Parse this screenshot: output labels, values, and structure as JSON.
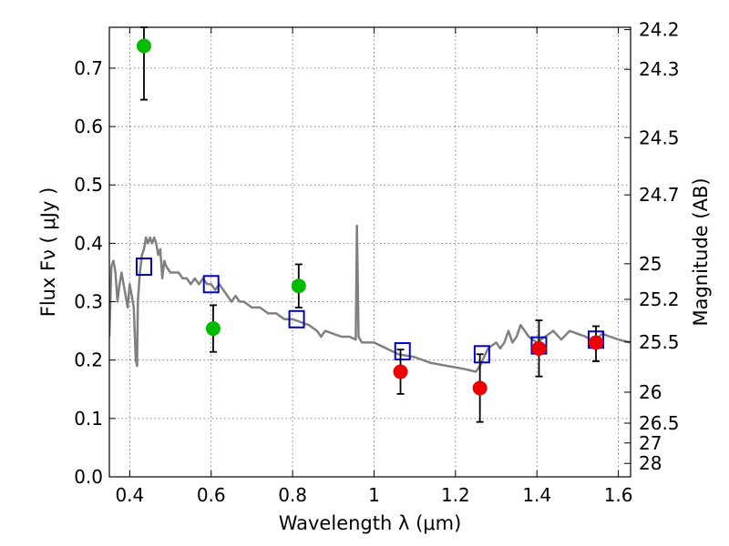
{
  "chart_data": {
    "type": "scatter",
    "xlabel": "Wavelength  λ (μm)",
    "ylabel": "Flux  Fν  ( μJy )",
    "y2label": "Magnitude (AB)",
    "xlim": [
      0.35,
      1.63
    ],
    "ylim": [
      0.0,
      0.77
    ],
    "grid": true,
    "x_ticks": [
      0.4,
      0.6,
      0.8,
      1.0,
      1.2,
      1.4,
      1.6
    ],
    "x_tick_labels": [
      "0.4",
      "0.6",
      "0.8",
      "1",
      "1.2",
      "1.4",
      "1.6"
    ],
    "y_ticks": [
      0.0,
      0.1,
      0.2,
      0.3,
      0.4,
      0.5,
      0.6,
      0.7
    ],
    "y_tick_labels": [
      "0.0",
      "0.1",
      "0.2",
      "0.3",
      "0.4",
      "0.5",
      "0.6",
      "0.7"
    ],
    "y2_ticks": [
      {
        "label": "24.2",
        "flux": 0.766
      },
      {
        "label": "24.3",
        "flux": 0.698
      },
      {
        "label": "24.5",
        "flux": 0.581
      },
      {
        "label": "24.7",
        "flux": 0.483
      },
      {
        "label": "25",
        "flux": 0.365
      },
      {
        "label": "25.2",
        "flux": 0.304
      },
      {
        "label": "25.5",
        "flux": 0.231
      },
      {
        "label": "26",
        "flux": 0.145
      },
      {
        "label": "26.5",
        "flux": 0.092
      },
      {
        "label": "27",
        "flux": 0.058
      },
      {
        "label": "28",
        "flux": 0.023
      }
    ],
    "series": [
      {
        "kind": "line",
        "color": "#808080",
        "points": [
          [
            0.35,
            0.24
          ],
          [
            0.355,
            0.36
          ],
          [
            0.36,
            0.37
          ],
          [
            0.365,
            0.35
          ],
          [
            0.37,
            0.3
          ],
          [
            0.375,
            0.33
          ],
          [
            0.38,
            0.35
          ],
          [
            0.385,
            0.33
          ],
          [
            0.39,
            0.31
          ],
          [
            0.395,
            0.29
          ],
          [
            0.4,
            0.33
          ],
          [
            0.405,
            0.31
          ],
          [
            0.41,
            0.29
          ],
          [
            0.415,
            0.2
          ],
          [
            0.418,
            0.19
          ],
          [
            0.42,
            0.3
          ],
          [
            0.425,
            0.35
          ],
          [
            0.43,
            0.38
          ],
          [
            0.435,
            0.39
          ],
          [
            0.44,
            0.41
          ],
          [
            0.445,
            0.4
          ],
          [
            0.45,
            0.41
          ],
          [
            0.455,
            0.4
          ],
          [
            0.46,
            0.41
          ],
          [
            0.465,
            0.4
          ],
          [
            0.47,
            0.38
          ],
          [
            0.475,
            0.39
          ],
          [
            0.48,
            0.34
          ],
          [
            0.485,
            0.37
          ],
          [
            0.49,
            0.36
          ],
          [
            0.5,
            0.35
          ],
          [
            0.51,
            0.35
          ],
          [
            0.52,
            0.35
          ],
          [
            0.53,
            0.34
          ],
          [
            0.54,
            0.34
          ],
          [
            0.55,
            0.33
          ],
          [
            0.56,
            0.34
          ],
          [
            0.57,
            0.33
          ],
          [
            0.58,
            0.34
          ],
          [
            0.59,
            0.33
          ],
          [
            0.6,
            0.33
          ],
          [
            0.61,
            0.32
          ],
          [
            0.62,
            0.33
          ],
          [
            0.63,
            0.32
          ],
          [
            0.64,
            0.31
          ],
          [
            0.65,
            0.3
          ],
          [
            0.66,
            0.31
          ],
          [
            0.67,
            0.3
          ],
          [
            0.68,
            0.3
          ],
          [
            0.7,
            0.29
          ],
          [
            0.72,
            0.29
          ],
          [
            0.74,
            0.28
          ],
          [
            0.76,
            0.28
          ],
          [
            0.78,
            0.27
          ],
          [
            0.8,
            0.27
          ],
          [
            0.82,
            0.265
          ],
          [
            0.84,
            0.26
          ],
          [
            0.86,
            0.25
          ],
          [
            0.87,
            0.24
          ],
          [
            0.88,
            0.25
          ],
          [
            0.9,
            0.245
          ],
          [
            0.92,
            0.24
          ],
          [
            0.94,
            0.24
          ],
          [
            0.955,
            0.235
          ],
          [
            0.958,
            0.43
          ],
          [
            0.962,
            0.24
          ],
          [
            0.97,
            0.23
          ],
          [
            1.0,
            0.23
          ],
          [
            1.03,
            0.22
          ],
          [
            1.06,
            0.21
          ],
          [
            1.1,
            0.205
          ],
          [
            1.14,
            0.195
          ],
          [
            1.18,
            0.19
          ],
          [
            1.22,
            0.185
          ],
          [
            1.25,
            0.18
          ],
          [
            1.26,
            0.19
          ],
          [
            1.28,
            0.22
          ],
          [
            1.3,
            0.23
          ],
          [
            1.31,
            0.22
          ],
          [
            1.32,
            0.23
          ],
          [
            1.33,
            0.25
          ],
          [
            1.34,
            0.23
          ],
          [
            1.35,
            0.24
          ],
          [
            1.36,
            0.26
          ],
          [
            1.37,
            0.25
          ],
          [
            1.38,
            0.24
          ],
          [
            1.4,
            0.23
          ],
          [
            1.42,
            0.24
          ],
          [
            1.44,
            0.25
          ],
          [
            1.46,
            0.235
          ],
          [
            1.48,
            0.25
          ],
          [
            1.5,
            0.245
          ],
          [
            1.52,
            0.24
          ],
          [
            1.54,
            0.23
          ],
          [
            1.56,
            0.245
          ],
          [
            1.58,
            0.24
          ],
          [
            1.6,
            0.235
          ],
          [
            1.63,
            0.23
          ]
        ]
      },
      {
        "kind": "open-square",
        "color": "#0000cc",
        "points": [
          [
            0.435,
            0.36
          ],
          [
            0.6,
            0.33
          ],
          [
            0.81,
            0.27
          ],
          [
            1.07,
            0.215
          ],
          [
            1.265,
            0.21
          ],
          [
            1.405,
            0.225
          ],
          [
            1.545,
            0.235
          ]
        ]
      },
      {
        "kind": "filled-circle",
        "color": "#00bb00",
        "points": [
          {
            "x": 0.435,
            "y": 0.738,
            "lo": 0.646,
            "hi": 0.77
          },
          {
            "x": 0.605,
            "y": 0.254,
            "lo": 0.214,
            "hi": 0.294
          },
          {
            "x": 0.815,
            "y": 0.327,
            "lo": 0.29,
            "hi": 0.364
          }
        ]
      },
      {
        "kind": "filled-circle",
        "color": "#ee0000",
        "points": [
          {
            "x": 1.065,
            "y": 0.18,
            "lo": 0.142,
            "hi": 0.218
          },
          {
            "x": 1.26,
            "y": 0.152,
            "lo": 0.094,
            "hi": 0.21
          },
          {
            "x": 1.405,
            "y": 0.22,
            "lo": 0.172,
            "hi": 0.268
          },
          {
            "x": 1.545,
            "y": 0.23,
            "lo": 0.198,
            "hi": 0.258
          }
        ]
      }
    ]
  }
}
